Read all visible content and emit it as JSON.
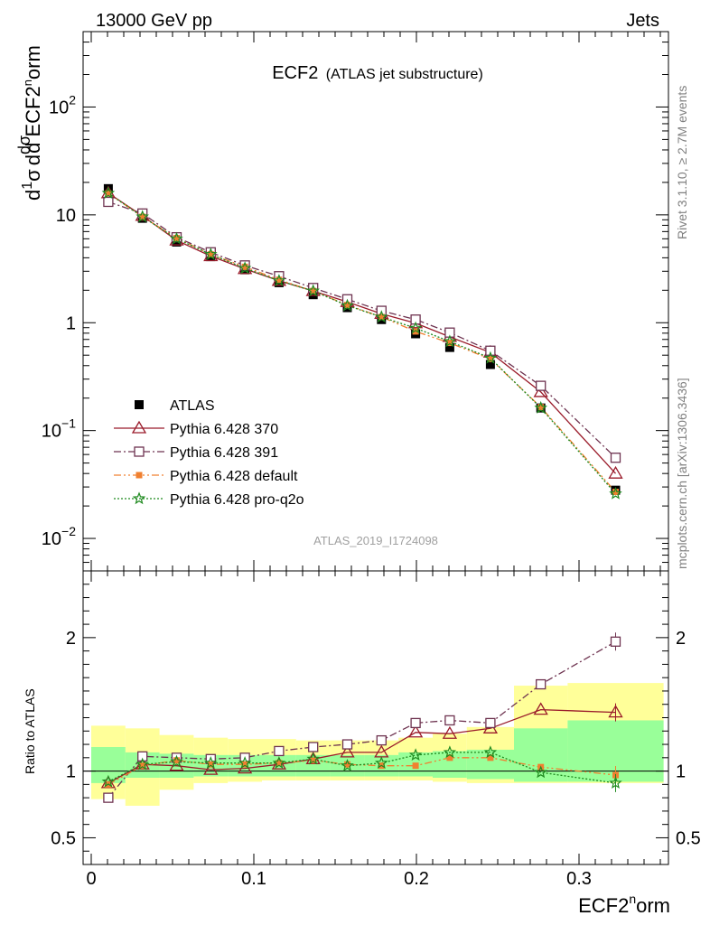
{
  "header": {
    "left": "13000 GeV pp",
    "right": "Jets"
  },
  "title": {
    "main": "ECF2",
    "sub": "(ATLAS jet substructure)"
  },
  "side_labels": {
    "rivet": "Rivet 3.1.10, ≥ 2.7M events",
    "mcplots": "mcplots.cern.ch [arXiv:1306.3436]"
  },
  "watermark": "ATLAS_2019_I1724098",
  "ylabel_main": "1/σ dσ/d ECF2^norm",
  "ylabel_ratio": "Ratio to ATLAS",
  "xlabel": "ECF2^norm",
  "colors": {
    "data": "#000000",
    "p370": "#9a1b2a",
    "p391": "#6e3350",
    "default": "#f08030",
    "proq2o": "#1f8a1f",
    "band_inner": "#99ff99",
    "band_outer": "#ffff99"
  },
  "chart_data": [
    {
      "type": "scatter",
      "panel": "main",
      "yscale": "log",
      "xlim": [
        -0.005,
        0.355
      ],
      "ylim": [
        0.005,
        500
      ],
      "x_ticks": [
        0,
        0.1,
        0.2,
        0.3
      ],
      "y_ticks": [
        0.01,
        0.1,
        1,
        10,
        100
      ],
      "y_tick_labels": [
        "10^-2",
        "10^-1",
        "1",
        "10",
        "10^2"
      ],
      "legend_position": "lower-left",
      "x": [
        0.0105,
        0.0315,
        0.0525,
        0.0735,
        0.0945,
        0.1155,
        0.1365,
        0.1575,
        0.1785,
        0.1995,
        0.2205,
        0.2455,
        0.2765,
        0.3225
      ],
      "series": [
        {
          "name": "ATLAS",
          "key": "data",
          "marker": "square-filled",
          "values": [
            17.5,
            9.3,
            5.6,
            4.1,
            3.1,
            2.35,
            1.82,
            1.38,
            1.07,
            0.79,
            0.59,
            0.41,
            0.162,
            0.028
          ]
        },
        {
          "name": "Pythia 6.428 370",
          "key": "p370",
          "marker": "triangle-open",
          "dash": "solid",
          "values": [
            15.9,
            9.8,
            5.8,
            4.15,
            3.15,
            2.45,
            1.97,
            1.56,
            1.21,
            0.99,
            0.74,
            0.53,
            0.228,
            0.04
          ]
        },
        {
          "name": "Pythia 6.428 391",
          "key": "p391",
          "marker": "square-open",
          "dash": "dashdot",
          "values": [
            13.2,
            10.3,
            6.2,
            4.5,
            3.4,
            2.7,
            2.1,
            1.65,
            1.29,
            1.07,
            0.81,
            0.55,
            0.26,
            0.056
          ]
        },
        {
          "name": "Pythia 6.428 default",
          "key": "default",
          "marker": "square-filled-small",
          "dash": "dashdotdot",
          "values": [
            15.8,
            9.6,
            6.1,
            4.3,
            3.3,
            2.5,
            1.97,
            1.46,
            1.13,
            0.83,
            0.65,
            0.46,
            0.165,
            0.027
          ]
        },
        {
          "name": "Pythia 6.428 pro-q2o",
          "key": "proq2o",
          "marker": "star",
          "dash": "dotted",
          "values": [
            15.9,
            9.6,
            6.0,
            4.3,
            3.2,
            2.45,
            1.97,
            1.44,
            1.13,
            0.89,
            0.67,
            0.47,
            0.162,
            0.026
          ]
        }
      ]
    },
    {
      "type": "scatter",
      "panel": "ratio",
      "xlim": [
        -0.005,
        0.355
      ],
      "ylim": [
        0.3,
        2.5
      ],
      "x_ticks": [
        0,
        0.1,
        0.2,
        0.3
      ],
      "y_ticks": [
        0.5,
        1,
        2
      ],
      "x_edges": [
        0.0,
        0.021,
        0.042,
        0.063,
        0.084,
        0.105,
        0.126,
        0.147,
        0.168,
        0.189,
        0.21,
        0.231,
        0.26,
        0.293,
        0.352
      ],
      "band_inner": {
        "low": [
          0.91,
          0.95,
          0.95,
          0.96,
          0.96,
          0.96,
          0.96,
          0.96,
          0.96,
          0.96,
          0.95,
          0.94,
          0.92,
          0.92
        ],
        "high": [
          1.18,
          1.14,
          1.13,
          1.12,
          1.12,
          1.12,
          1.12,
          1.12,
          1.12,
          1.14,
          1.15,
          1.16,
          1.32,
          1.38
        ]
      },
      "band_outer": {
        "low": [
          0.79,
          0.74,
          0.86,
          0.91,
          0.92,
          0.93,
          0.93,
          0.93,
          0.93,
          0.93,
          0.92,
          0.91,
          0.91,
          0.91
        ],
        "high": [
          1.34,
          1.32,
          1.27,
          1.25,
          1.24,
          1.24,
          1.23,
          1.23,
          1.23,
          1.25,
          1.28,
          1.33,
          1.64,
          1.66
        ]
      },
      "x": [
        0.0105,
        0.0315,
        0.0525,
        0.0735,
        0.0945,
        0.1155,
        0.1365,
        0.1575,
        0.1785,
        0.1995,
        0.2205,
        0.2455,
        0.2765,
        0.3225
      ],
      "series": [
        {
          "name": "Pythia 6.428 370",
          "key": "p370",
          "marker": "triangle-open",
          "dash": "solid",
          "values": [
            0.91,
            1.05,
            1.04,
            1.01,
            1.02,
            1.05,
            1.09,
            1.14,
            1.14,
            1.29,
            1.28,
            1.32,
            1.46,
            1.44
          ]
        },
        {
          "name": "Pythia 6.428 391",
          "key": "p391",
          "marker": "square-open",
          "dash": "dashdot",
          "values": [
            0.8,
            1.11,
            1.1,
            1.09,
            1.1,
            1.15,
            1.18,
            1.2,
            1.23,
            1.36,
            1.38,
            1.36,
            1.65,
            1.97
          ]
        },
        {
          "name": "Pythia 6.428 default",
          "key": "default",
          "marker": "square-filled-small",
          "dash": "dashdotdot",
          "values": [
            0.9,
            1.04,
            1.08,
            1.05,
            1.05,
            1.06,
            1.08,
            1.05,
            1.04,
            1.04,
            1.1,
            1.1,
            1.03,
            0.97
          ]
        },
        {
          "name": "Pythia 6.428 pro-q2o",
          "key": "proq2o",
          "marker": "star",
          "dash": "dotted",
          "values": [
            0.92,
            1.05,
            1.07,
            1.06,
            1.06,
            1.06,
            1.09,
            1.04,
            1.06,
            1.12,
            1.14,
            1.14,
            0.99,
            0.91
          ]
        }
      ]
    }
  ]
}
